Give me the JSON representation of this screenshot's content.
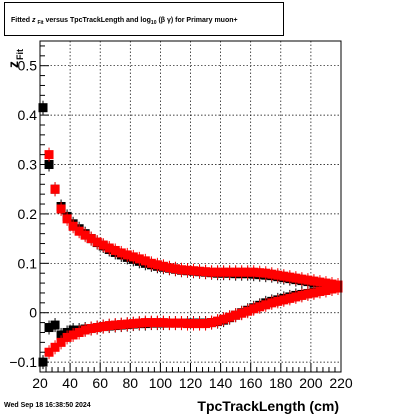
{
  "chart_data": {
    "type": "scatter",
    "title_parts": {
      "prefix": "Fitted ",
      "z": "z",
      "z_sub": "Fit",
      "middle": " versus TpcTrackLength and log",
      "log_sub": "10",
      "suffix": "(β γ) for Primary muon+"
    },
    "xlabel": "TpcTrackLength (cm)",
    "ylabel": "z",
    "ylabel_sub": "Fit",
    "xlim": [
      20,
      220
    ],
    "ylim": [
      -0.12,
      0.55
    ],
    "xticks": [
      20,
      40,
      60,
      80,
      100,
      120,
      140,
      160,
      180,
      200,
      220
    ],
    "yticks": [
      -0.1,
      0,
      0.1,
      0.2,
      0.3,
      0.4,
      0.5
    ],
    "ytick_labels": [
      "−0.1",
      "0",
      "0.1",
      "0.2",
      "0.3",
      "0.4",
      "0.5"
    ],
    "grid": true,
    "series": [
      {
        "color": "#000000",
        "points": [
          [
            22,
            0.415
          ],
          [
            26,
            0.3
          ],
          [
            30,
            0.25
          ],
          [
            34,
            0.215
          ],
          [
            38,
            0.195
          ],
          [
            42,
            0.18
          ],
          [
            46,
            0.17
          ],
          [
            50,
            0.16
          ],
          [
            54,
            0.15
          ],
          [
            58,
            0.142
          ],
          [
            62,
            0.135
          ],
          [
            66,
            0.128
          ],
          [
            70,
            0.122
          ],
          [
            74,
            0.117
          ],
          [
            78,
            0.112
          ],
          [
            82,
            0.108
          ],
          [
            86,
            0.104
          ],
          [
            90,
            0.1
          ],
          [
            94,
            0.097
          ],
          [
            98,
            0.094
          ],
          [
            102,
            0.092
          ],
          [
            106,
            0.09
          ],
          [
            110,
            0.088
          ],
          [
            114,
            0.086
          ],
          [
            118,
            0.085
          ],
          [
            122,
            0.084
          ],
          [
            126,
            0.083
          ],
          [
            130,
            0.082
          ],
          [
            134,
            0.081
          ],
          [
            138,
            0.08
          ],
          [
            142,
            0.08
          ],
          [
            146,
            0.08
          ],
          [
            150,
            0.079
          ],
          [
            154,
            0.079
          ],
          [
            158,
            0.079
          ],
          [
            162,
            0.078
          ],
          [
            166,
            0.077
          ],
          [
            170,
            0.076
          ],
          [
            174,
            0.075
          ],
          [
            178,
            0.073
          ],
          [
            182,
            0.071
          ],
          [
            186,
            0.069
          ],
          [
            190,
            0.067
          ],
          [
            194,
            0.065
          ],
          [
            198,
            0.063
          ],
          [
            202,
            0.061
          ],
          [
            206,
            0.058
          ],
          [
            210,
            0.056
          ],
          [
            214,
            0.054
          ],
          [
            218,
            0.052
          ],
          [
            22,
            -0.1
          ],
          [
            26,
            -0.03
          ],
          [
            30,
            -0.025
          ],
          [
            34,
            -0.045
          ],
          [
            38,
            -0.04
          ],
          [
            42,
            -0.035
          ],
          [
            46,
            -0.035
          ],
          [
            50,
            -0.033
          ],
          [
            54,
            -0.032
          ],
          [
            58,
            -0.03
          ],
          [
            62,
            -0.028
          ],
          [
            66,
            -0.027
          ],
          [
            70,
            -0.026
          ],
          [
            74,
            -0.025
          ],
          [
            78,
            -0.024
          ],
          [
            82,
            -0.023
          ],
          [
            86,
            -0.022
          ],
          [
            90,
            -0.022
          ],
          [
            94,
            -0.021
          ],
          [
            98,
            -0.021
          ],
          [
            102,
            -0.021
          ],
          [
            106,
            -0.021
          ],
          [
            110,
            -0.021
          ],
          [
            114,
            -0.021
          ],
          [
            118,
            -0.021
          ],
          [
            122,
            -0.021
          ],
          [
            126,
            -0.021
          ],
          [
            130,
            -0.021
          ],
          [
            134,
            -0.02
          ],
          [
            138,
            -0.018
          ],
          [
            142,
            -0.015
          ],
          [
            146,
            -0.01
          ],
          [
            150,
            -0.005
          ],
          [
            154,
            0.0
          ],
          [
            158,
            0.005
          ],
          [
            162,
            0.01
          ],
          [
            166,
            0.015
          ],
          [
            170,
            0.02
          ],
          [
            174,
            0.023
          ],
          [
            178,
            0.026
          ],
          [
            182,
            0.029
          ],
          [
            186,
            0.032
          ],
          [
            190,
            0.035
          ],
          [
            194,
            0.037
          ],
          [
            198,
            0.039
          ],
          [
            202,
            0.042
          ],
          [
            206,
            0.044
          ],
          [
            210,
            0.046
          ],
          [
            214,
            0.048
          ],
          [
            218,
            0.05
          ]
        ]
      },
      {
        "color": "#ff0000",
        "points": [
          [
            26,
            0.32
          ],
          [
            30,
            0.25
          ],
          [
            34,
            0.21
          ],
          [
            38,
            0.19
          ],
          [
            42,
            0.175
          ],
          [
            46,
            0.165
          ],
          [
            50,
            0.157
          ],
          [
            54,
            0.15
          ],
          [
            58,
            0.143
          ],
          [
            62,
            0.137
          ],
          [
            66,
            0.131
          ],
          [
            70,
            0.126
          ],
          [
            74,
            0.121
          ],
          [
            78,
            0.117
          ],
          [
            82,
            0.113
          ],
          [
            86,
            0.109
          ],
          [
            90,
            0.105
          ],
          [
            94,
            0.1
          ],
          [
            98,
            0.097
          ],
          [
            102,
            0.094
          ],
          [
            106,
            0.091
          ],
          [
            110,
            0.089
          ],
          [
            114,
            0.087
          ],
          [
            118,
            0.086
          ],
          [
            122,
            0.085
          ],
          [
            126,
            0.084
          ],
          [
            130,
            0.083
          ],
          [
            134,
            0.082
          ],
          [
            138,
            0.082
          ],
          [
            142,
            0.082
          ],
          [
            146,
            0.082
          ],
          [
            150,
            0.082
          ],
          [
            154,
            0.082
          ],
          [
            158,
            0.082
          ],
          [
            162,
            0.082
          ],
          [
            166,
            0.081
          ],
          [
            170,
            0.08
          ],
          [
            174,
            0.078
          ],
          [
            178,
            0.076
          ],
          [
            182,
            0.074
          ],
          [
            186,
            0.072
          ],
          [
            190,
            0.07
          ],
          [
            194,
            0.068
          ],
          [
            198,
            0.066
          ],
          [
            202,
            0.064
          ],
          [
            206,
            0.062
          ],
          [
            210,
            0.06
          ],
          [
            214,
            0.058
          ],
          [
            218,
            0.056
          ],
          [
            26,
            -0.08
          ],
          [
            30,
            -0.07
          ],
          [
            34,
            -0.06
          ],
          [
            38,
            -0.05
          ],
          [
            42,
            -0.045
          ],
          [
            46,
            -0.04
          ],
          [
            50,
            -0.035
          ],
          [
            54,
            -0.032
          ],
          [
            58,
            -0.03
          ],
          [
            62,
            -0.028
          ],
          [
            66,
            -0.026
          ],
          [
            70,
            -0.025
          ],
          [
            74,
            -0.024
          ],
          [
            78,
            -0.023
          ],
          [
            82,
            -0.022
          ],
          [
            86,
            -0.021
          ],
          [
            90,
            -0.02
          ],
          [
            94,
            -0.02
          ],
          [
            98,
            -0.02
          ],
          [
            102,
            -0.02
          ],
          [
            106,
            -0.021
          ],
          [
            110,
            -0.021
          ],
          [
            114,
            -0.021
          ],
          [
            118,
            -0.022
          ],
          [
            122,
            -0.022
          ],
          [
            126,
            -0.022
          ],
          [
            130,
            -0.022
          ],
          [
            134,
            -0.02
          ],
          [
            138,
            -0.017
          ],
          [
            142,
            -0.013
          ],
          [
            146,
            -0.009
          ],
          [
            150,
            -0.005
          ],
          [
            154,
            -0.001
          ],
          [
            158,
            0.003
          ],
          [
            162,
            0.008
          ],
          [
            166,
            0.012
          ],
          [
            170,
            0.016
          ],
          [
            174,
            0.02
          ],
          [
            178,
            0.023
          ],
          [
            182,
            0.026
          ],
          [
            186,
            0.029
          ],
          [
            190,
            0.032
          ],
          [
            194,
            0.035
          ],
          [
            198,
            0.038
          ],
          [
            202,
            0.04
          ],
          [
            206,
            0.043
          ],
          [
            210,
            0.045
          ],
          [
            214,
            0.048
          ],
          [
            218,
            0.05
          ]
        ]
      }
    ]
  },
  "datestamp": "Wed Sep 18 16:38:50 2024"
}
